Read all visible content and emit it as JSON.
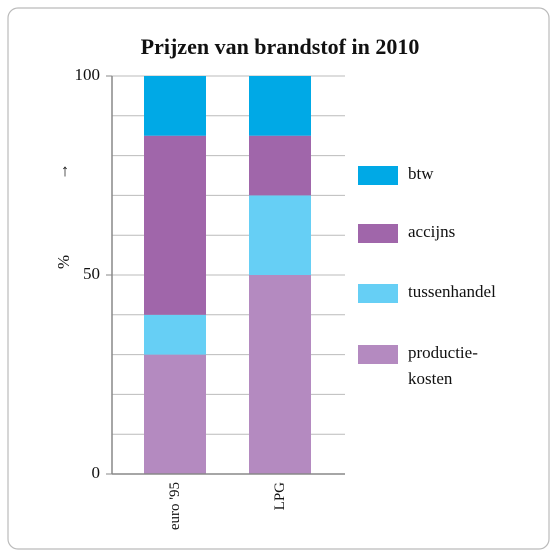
{
  "chart_data": {
    "type": "stacked_bar",
    "title": "Prijzen van brandstof in 2010",
    "y_label": "%",
    "y_arrow": "↑",
    "categories": [
      "euro '95",
      "LPG"
    ],
    "series": [
      {
        "name": "productie-\nkosten",
        "color": "#b48ac0",
        "values": [
          30,
          50
        ]
      },
      {
        "name": "tussenhandel",
        "color": "#66cff5",
        "values": [
          10,
          20
        ]
      },
      {
        "name": "accijns",
        "color": "#a066aa",
        "values": [
          45,
          15
        ]
      },
      {
        "name": "btw",
        "color": "#00a9e6",
        "values": [
          15,
          15
        ]
      }
    ],
    "ylim": [
      0,
      100
    ],
    "yticks": [
      0,
      50,
      100
    ],
    "grid_lines": [
      10,
      20,
      30,
      40,
      50,
      60,
      70,
      80,
      90,
      100
    ],
    "grid": true
  }
}
